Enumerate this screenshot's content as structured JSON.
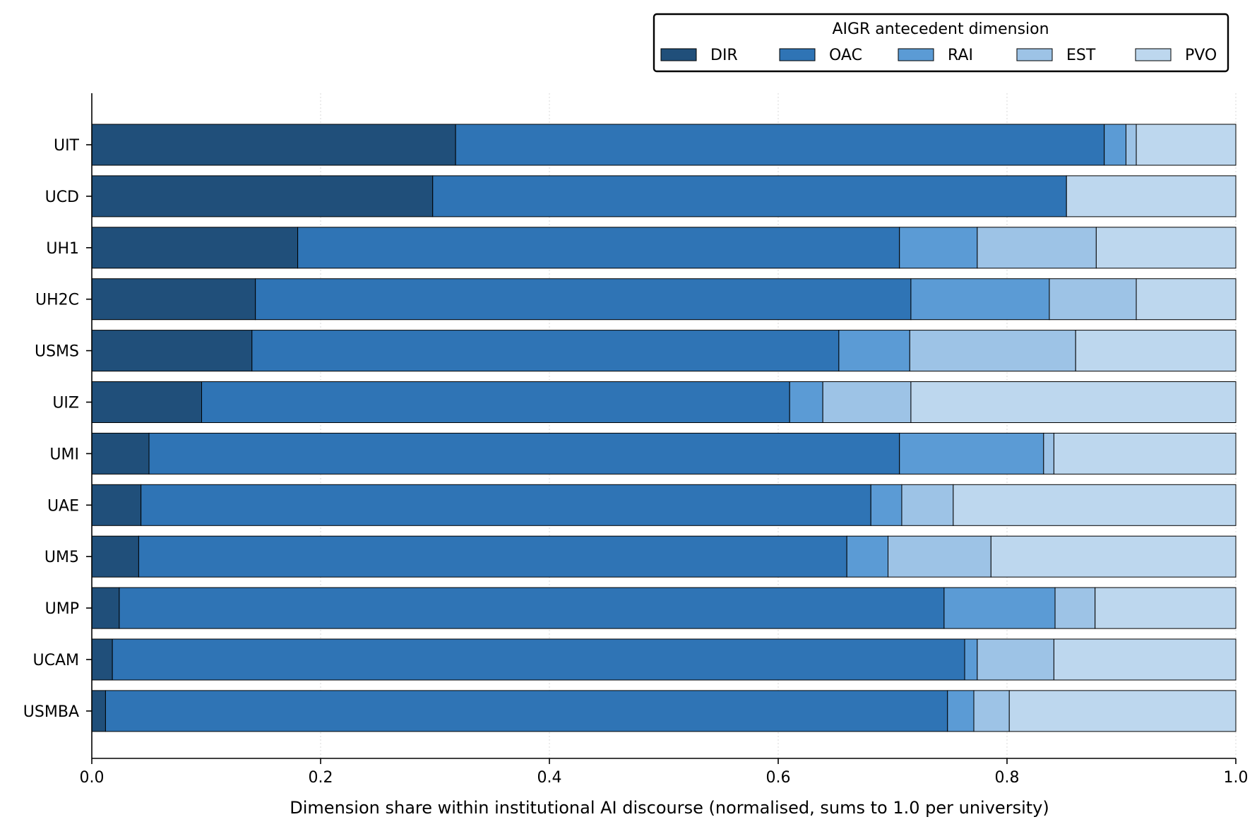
{
  "chart_data": {
    "type": "bar",
    "orientation": "horizontal",
    "stacked": true,
    "xlabel": "Dimension share within institutional AI discourse (normalised, sums to 1.0 per university)",
    "ylabel": "",
    "xlim": [
      0.0,
      1.0
    ],
    "xticks": [
      "0.0",
      "0.2",
      "0.4",
      "0.6",
      "0.8",
      "1.0"
    ],
    "xtick_values": [
      0.0,
      0.2,
      0.4,
      0.6,
      0.8,
      1.0
    ],
    "grid": "vertical dotted",
    "legend": {
      "title": "AIGR antecedent dimension",
      "placement": "top-right"
    },
    "categories": [
      "UIT",
      "UCD",
      "UH1",
      "UH2C",
      "USMS",
      "UIZ",
      "UMI",
      "UAE",
      "UM5",
      "UMP",
      "UCAM",
      "USMBA"
    ],
    "series": [
      {
        "name": "DIR",
        "color": "#204f7a",
        "values": [
          0.318,
          0.298,
          0.18,
          0.143,
          0.14,
          0.096,
          0.05,
          0.043,
          0.041,
          0.024,
          0.018,
          0.012
        ]
      },
      {
        "name": "OAC",
        "color": "#2f74b5",
        "values": [
          0.567,
          0.554,
          0.526,
          0.573,
          0.513,
          0.514,
          0.656,
          0.638,
          0.619,
          0.721,
          0.745,
          0.736
        ]
      },
      {
        "name": "RAI",
        "color": "#5b9bd5",
        "values": [
          0.019,
          0.0,
          0.068,
          0.121,
          0.062,
          0.029,
          0.126,
          0.027,
          0.036,
          0.097,
          0.011,
          0.023
        ]
      },
      {
        "name": "EST",
        "color": "#9dc3e6",
        "values": [
          0.009,
          0.0,
          0.104,
          0.076,
          0.145,
          0.077,
          0.009,
          0.045,
          0.09,
          0.035,
          0.067,
          0.031
        ]
      },
      {
        "name": "PVO",
        "color": "#bdd7ee",
        "values": [
          0.087,
          0.148,
          0.122,
          0.087,
          0.14,
          0.284,
          0.159,
          0.247,
          0.214,
          0.123,
          0.159,
          0.198
        ]
      }
    ]
  }
}
